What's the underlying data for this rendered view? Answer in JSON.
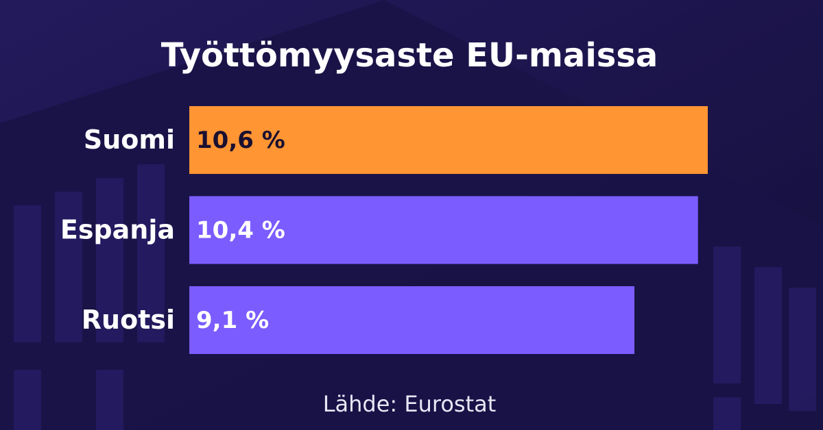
{
  "chart_data": {
    "type": "hbar",
    "title": "Työttömyysaste EU-maissa",
    "categories": [
      "Suomi",
      "Espanja",
      "Ruotsi"
    ],
    "values": [
      10.6,
      10.4,
      9.1
    ],
    "value_labels": [
      "10,6 %",
      "10,4 %",
      "9,1 %"
    ],
    "colors": [
      "#ff9533",
      "#7b5cff",
      "#7b5cff"
    ],
    "source": "Lähde: Eurostat"
  }
}
